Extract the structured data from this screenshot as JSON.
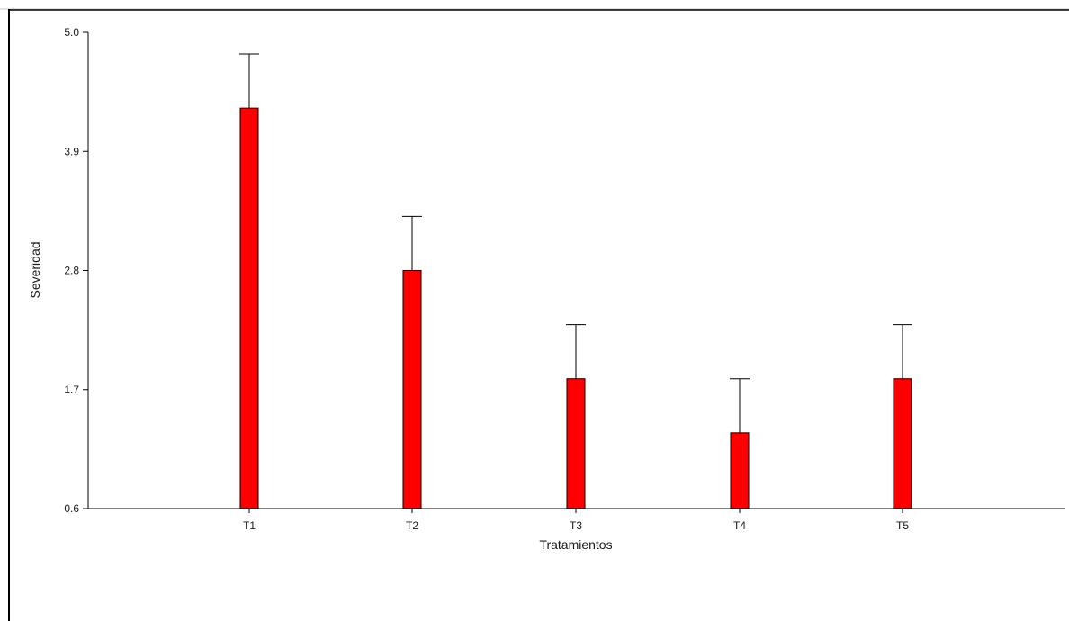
{
  "chart_data": {
    "type": "bar",
    "categories": [
      "T1",
      "T2",
      "T3",
      "T4",
      "T5"
    ],
    "values": [
      4.3,
      2.8,
      1.8,
      1.3,
      1.8
    ],
    "error_upper": [
      4.8,
      3.3,
      2.3,
      1.8,
      2.3
    ],
    "title": "",
    "xlabel": "Tratamientos",
    "ylabel": "Severidad",
    "ylim": [
      0.6,
      5.0
    ],
    "yticks": [
      0.6,
      1.7,
      2.8,
      3.9,
      5.0
    ],
    "ytick_labels": [
      "0.6",
      "1.7",
      "2.8",
      "3.9",
      "5.0"
    ],
    "grid": false,
    "bar_color": "#ff0000",
    "bar_edge_color": "#000000"
  }
}
